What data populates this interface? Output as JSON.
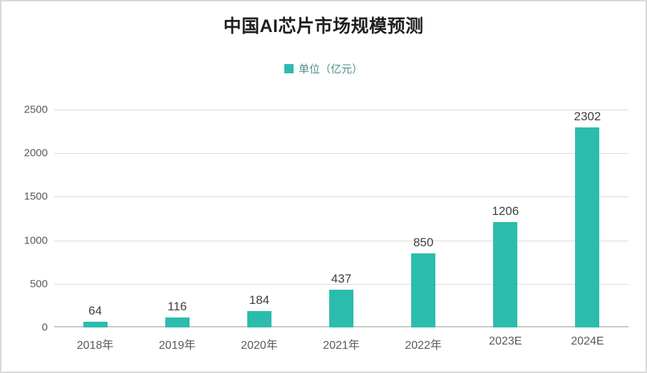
{
  "title": "中国AI芯片市场规模预测",
  "legend": {
    "label": "单位（亿元）",
    "marker_color": "#2cbcad",
    "text_color": "#4f9187"
  },
  "colors": {
    "bar": "#2cbcad",
    "title_text": "#1f1f1f",
    "axis_label": "#595959",
    "value_label": "#404040",
    "gridline": "#dcdcdc",
    "baseline": "#c9c9c9",
    "panel_border": "#d9d9d9"
  },
  "chart_data": {
    "type": "bar",
    "title": "中国AI芯片市场规模预测",
    "legend_entries": [
      "单位（亿元）"
    ],
    "legend_position": "top",
    "categories": [
      "2018年",
      "2019年",
      "2020年",
      "2021年",
      "2022年",
      "2023E",
      "2024E"
    ],
    "values": [
      64,
      116,
      184,
      437,
      850,
      1206,
      2302
    ],
    "xlabel": "",
    "ylabel": "",
    "ylim": [
      0,
      2500
    ],
    "yticks": [
      0,
      500,
      1000,
      1500,
      2000,
      2500
    ],
    "grid": true,
    "bar_color": "#2cbcad"
  }
}
